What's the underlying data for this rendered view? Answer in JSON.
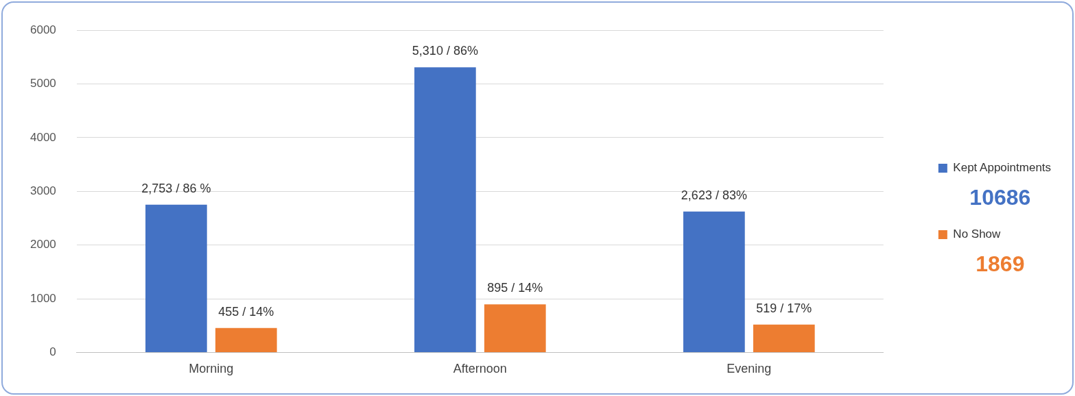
{
  "chart_data": {
    "type": "bar",
    "categories": [
      "Morning",
      "Afternoon",
      "Evening"
    ],
    "series": [
      {
        "name": "Kept Appointments",
        "color": "#4472c4",
        "values": [
          2753,
          5310,
          2623
        ],
        "value_labels": [
          "2,753 / 86 %",
          "5,310 / 86%",
          "2,623 / 83%"
        ]
      },
      {
        "name": "No Show",
        "color": "#ed7d31",
        "values": [
          455,
          895,
          519
        ],
        "value_labels": [
          "455 / 14%",
          "895 / 14%",
          "519 / 17%"
        ]
      }
    ],
    "ylim": [
      0,
      6000
    ],
    "yticks": [
      0,
      1000,
      2000,
      3000,
      4000,
      5000,
      6000
    ],
    "grid": "y",
    "legend": "right",
    "annotations": [
      "10686",
      "1869"
    ]
  }
}
